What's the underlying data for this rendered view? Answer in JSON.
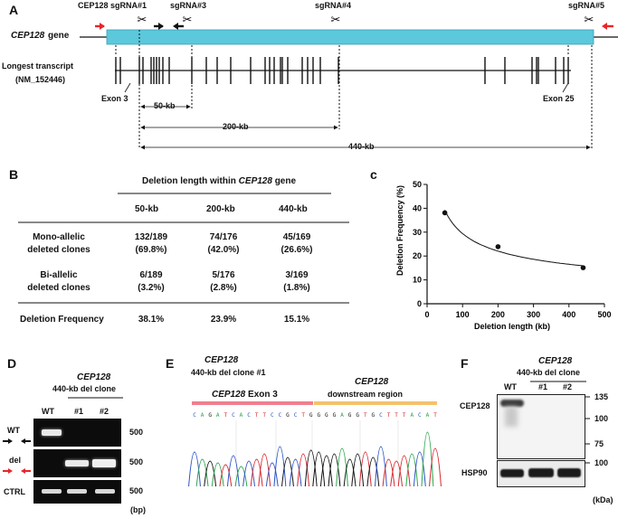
{
  "panel_a": {
    "label": "A",
    "sgrnas": [
      "CEP128 sgRNA#1",
      "sgRNA#3",
      "sgRNA#4",
      "sgRNA#5"
    ],
    "gene_label": "CEP128",
    "gene_suffix": "gene",
    "transcript_label_1": "Longest transcript",
    "transcript_label_2": "(NM_152446)",
    "exon3": "Exon 3",
    "exon25": "Exon 25",
    "deletions": [
      "50-kb",
      "200-kb",
      "440-kb"
    ],
    "colors": {
      "gene_bar": "#5bc8dc",
      "arrow_red": "#e8252b"
    }
  },
  "panel_b": {
    "label": "B",
    "title_prefix": "Deletion length within",
    "title_gene": "CEP128",
    "title_suffix": "gene",
    "columns": [
      "50-kb",
      "200-kb",
      "440-kb"
    ],
    "rows": [
      {
        "label": [
          "Mono-allelic",
          "deleted clones"
        ],
        "cells": [
          [
            "132/189",
            "(69.8%)"
          ],
          [
            "74/176",
            "(42.0%)"
          ],
          [
            "45/169",
            "(26.6%)"
          ]
        ]
      },
      {
        "label": [
          "Bi-allelic",
          "deleted clones"
        ],
        "cells": [
          [
            "6/189",
            "(3.2%)"
          ],
          [
            "5/176",
            "(2.8%)"
          ],
          [
            "3/169",
            "(1.8%)"
          ]
        ]
      },
      {
        "label": [
          "Deletion Frequency"
        ],
        "cells": [
          [
            "38.1%"
          ],
          [
            "23.9%"
          ],
          [
            "15.1%"
          ]
        ]
      }
    ]
  },
  "panel_c": {
    "label": "c"
  },
  "chart_data": {
    "type": "scatter",
    "x": [
      50,
      200,
      440
    ],
    "y": [
      38.1,
      23.9,
      15.1
    ],
    "fit": "curve",
    "xlabel": "Deletion  length (kb)",
    "ylabel": "Deletion Frequency (%)",
    "xlim": [
      0,
      500
    ],
    "ylim": [
      0,
      50
    ],
    "xticks": [
      0,
      100,
      200,
      300,
      400,
      500
    ],
    "yticks": [
      0,
      10,
      20,
      30,
      40,
      50
    ]
  },
  "panel_d": {
    "label": "D",
    "title_gene": "CEP128",
    "title_line2": "440-kb del clone",
    "lanes": [
      "WT",
      "#1",
      "#2"
    ],
    "rows": [
      "WT",
      "del",
      "CTRL"
    ],
    "sizes": [
      "500",
      "500",
      "500"
    ],
    "unit": "(bp)"
  },
  "panel_e": {
    "label": "E",
    "title_gene": "CEP128",
    "title_line2": "440-kb del clone #1",
    "region1": "CEP128 Exon 3",
    "region2_gene": "CEP128",
    "region2_line2": "downstream region",
    "sequence": "CAGATCACTTCCGCTGGGGAGGTGCTTTACAT",
    "colors": {
      "region1": "#ef7f8f",
      "region2": "#f3c26b",
      "A": "#2aa64a",
      "C": "#2a52c8",
      "G": "#111111",
      "T": "#d8262c"
    }
  },
  "panel_f": {
    "label": "F",
    "title_gene": "CEP128",
    "title_line2": "440-kb del clone",
    "lanes": [
      "WT",
      "#1",
      "#2"
    ],
    "proteins": [
      "CEP128",
      "HSP90"
    ],
    "markers": [
      "135",
      "100",
      "75",
      "100"
    ],
    "unit": "(kDa)"
  }
}
